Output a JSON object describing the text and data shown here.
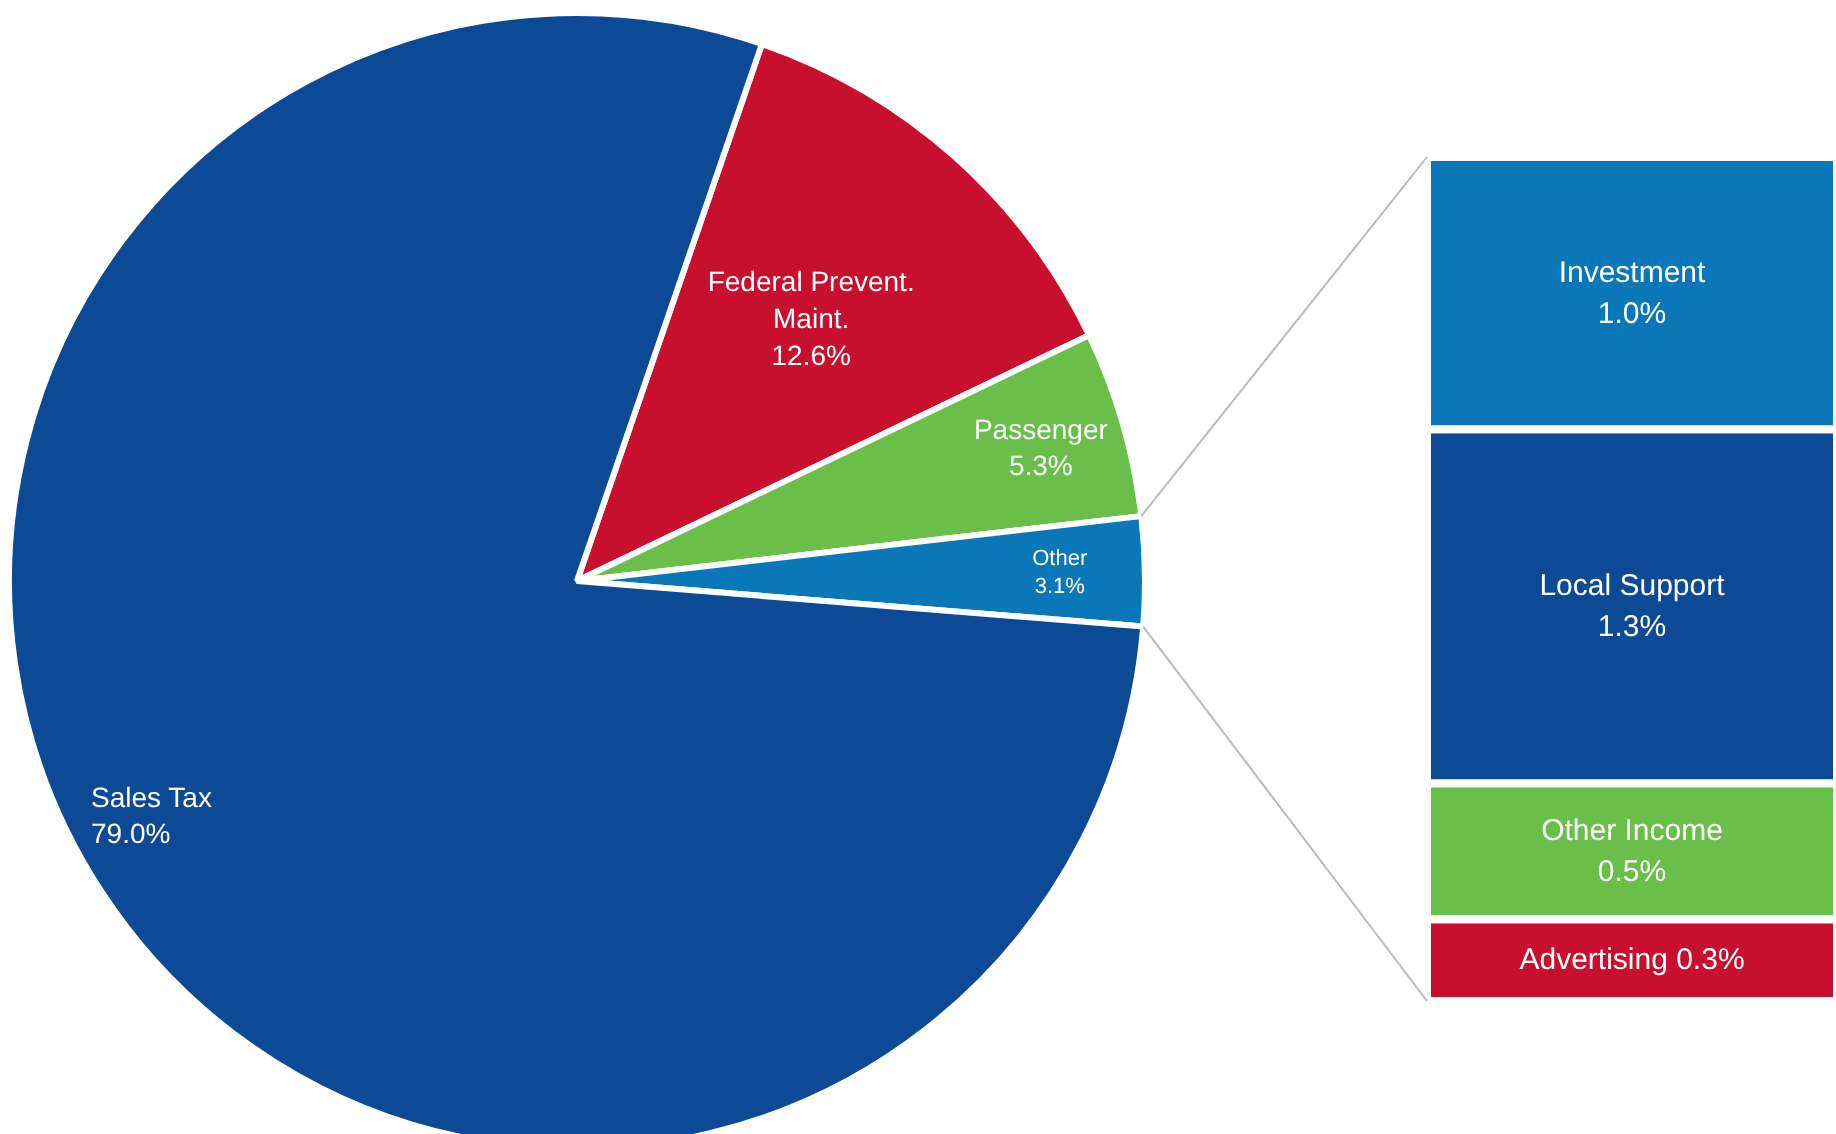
{
  "chart_data": [
    {
      "type": "pie",
      "categories": [
        "Federal Prevent.\nMaint.",
        "Passenger",
        "Other",
        "Sales Tax"
      ],
      "values": [
        12.6,
        5.3,
        3.1,
        79.0
      ],
      "colors": [
        "#c8102e",
        "#6abf4b",
        "#0a78b8",
        "#0d4a96"
      ],
      "value_labels": [
        "12.6%",
        "5.3%",
        "3.1%",
        "79.0%"
      ]
    },
    {
      "type": "bar",
      "stacked": true,
      "categories": [
        null
      ],
      "series": [
        {
          "name": "Advertising",
          "color": "#c8102e",
          "values": [
            0.3
          ],
          "value_labels": [
            "0.3%"
          ]
        },
        {
          "name": "Other Income",
          "color": "#6abf4b",
          "values": [
            0.5
          ],
          "value_labels": [
            "0.5%"
          ]
        },
        {
          "name": "Local Support",
          "color": "#0d4a96",
          "values": [
            1.3
          ],
          "value_labels": [
            "1.3%"
          ]
        },
        {
          "name": "Investment",
          "color": "#0a78b8",
          "values": [
            1.0
          ],
          "value_labels": [
            "1.0%"
          ]
        }
      ]
    }
  ]
}
